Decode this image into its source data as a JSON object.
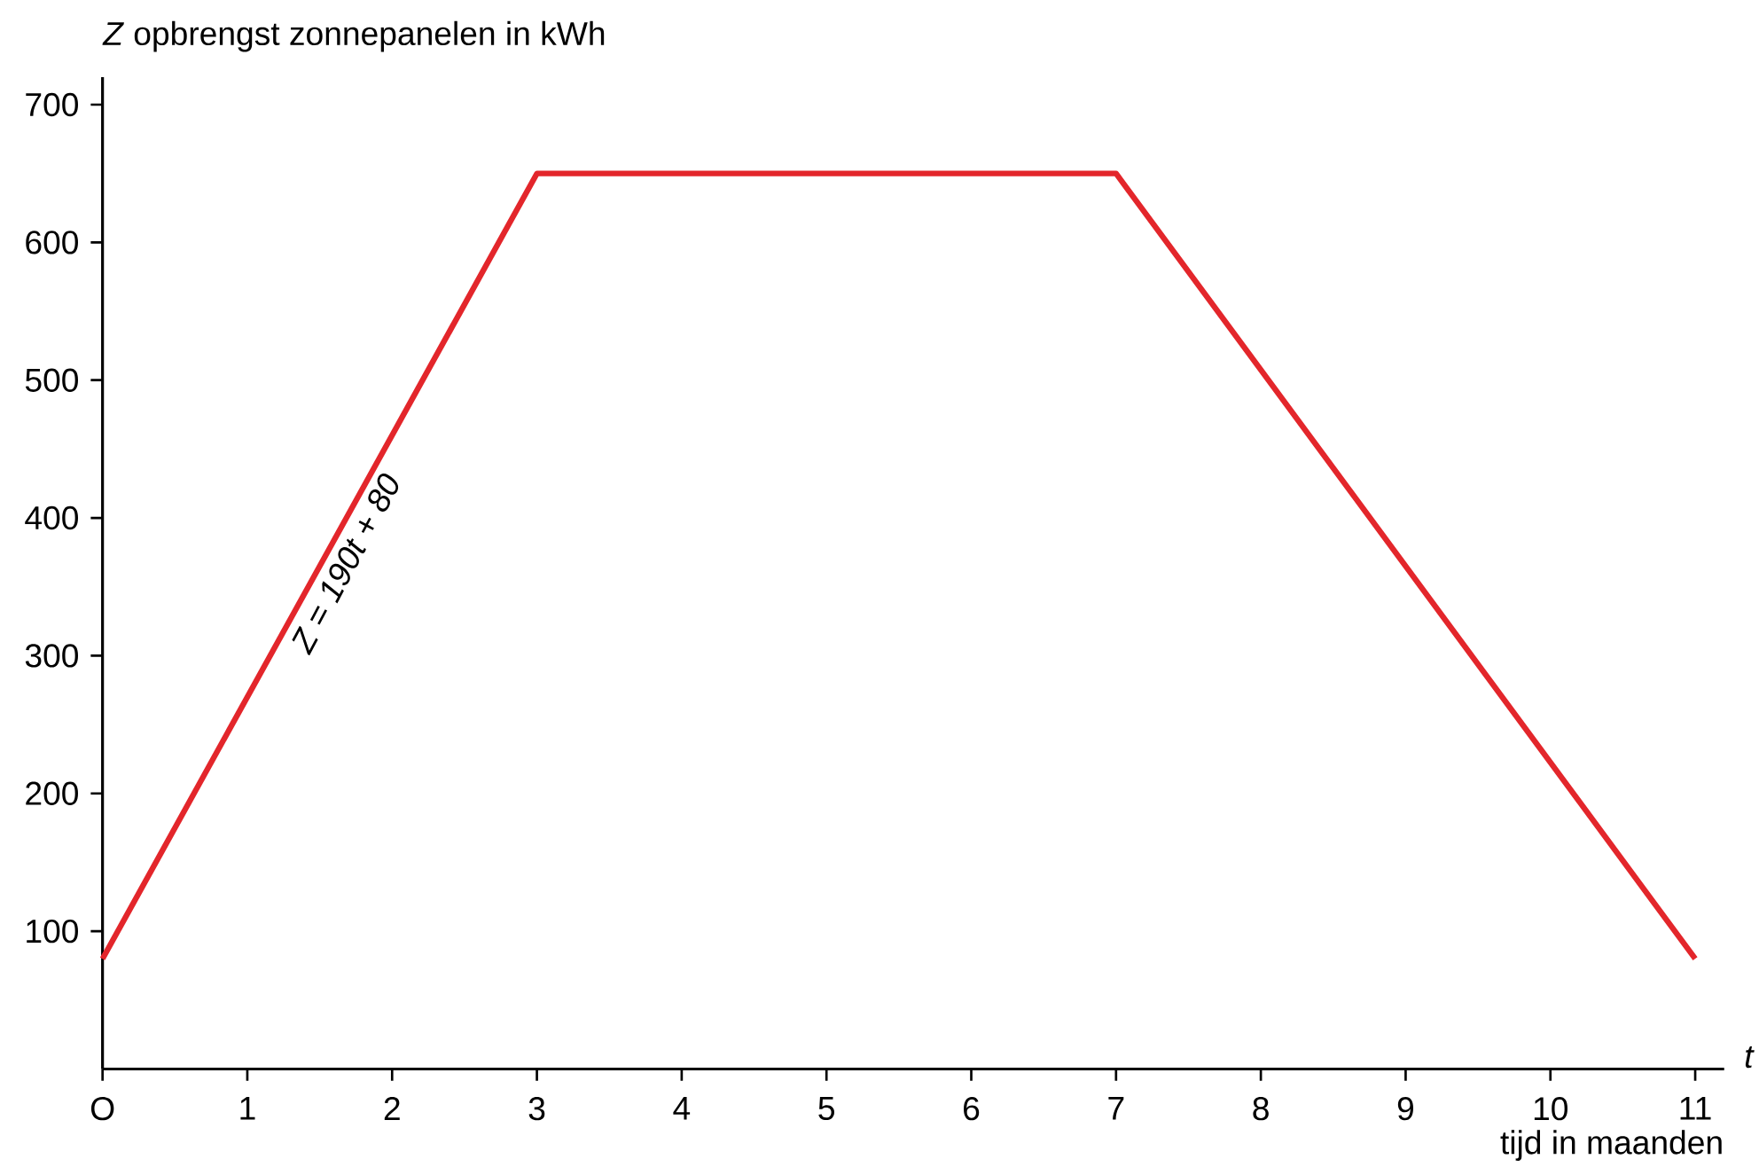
{
  "chart_data": {
    "type": "line",
    "ylabel": "*Z* opbrengst zonnepanelen in kWh",
    "xlabel": "tijd in maanden",
    "x": [
      0,
      3,
      7,
      11
    ],
    "series": [
      {
        "color": "#e3262b",
        "values": [
          80,
          650,
          650,
          80
        ]
      }
    ],
    "xlim": [
      0,
      11.2
    ],
    "ylim": [
      0,
      720
    ],
    "xticks": [
      {
        "value": 0,
        "label": "O"
      },
      1,
      2,
      3,
      4,
      5,
      6,
      7,
      8,
      9,
      10,
      11
    ],
    "yticks": [
      100,
      200,
      300,
      400,
      500,
      600,
      700
    ],
    "grid": false,
    "marker": "none",
    "line_style": "solid",
    "annotations": [
      "Z = 190t + 80",
      "*t*"
    ]
  }
}
